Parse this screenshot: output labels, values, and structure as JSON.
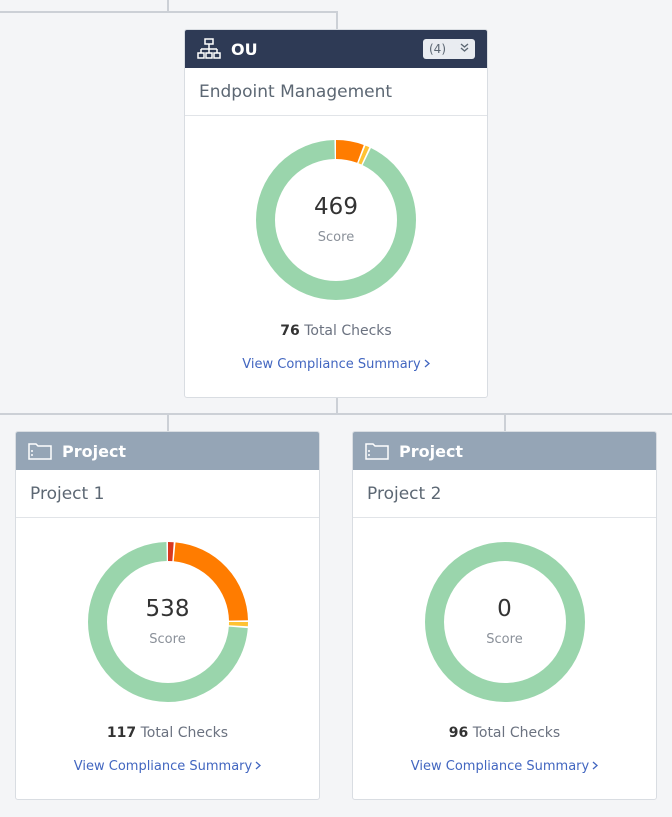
{
  "colors": {
    "ou_header": "#2e3a55",
    "project_header": "#95a5b6",
    "passing": "#9ad5ac",
    "warning": "#ff7c00",
    "low": "#ffc233",
    "critical": "#d9381e",
    "link": "#4266c0"
  },
  "ou_card": {
    "header_icon": "org-hierarchy-icon",
    "header_label": "OU",
    "count_label": "(4)",
    "count_icon": "double-chevron-down-icon",
    "name": "Endpoint Management",
    "score": "469",
    "score_label": "Score",
    "checks_count": "76",
    "checks_label": "Total Checks",
    "link_label": "View Compliance Summary",
    "link_icon": "chevron-right-icon",
    "segments": [
      {
        "status": "warning",
        "fraction": 0.06
      },
      {
        "status": "low",
        "fraction": 0.012
      },
      {
        "status": "passing",
        "fraction": 0.928
      }
    ]
  },
  "projects": [
    {
      "header_icon": "folder-icon",
      "header_label": "Project",
      "name": "Project 1",
      "score": "538",
      "score_label": "Score",
      "checks_count": "117",
      "checks_label": "Total Checks",
      "link_label": "View Compliance Summary",
      "link_icon": "chevron-right-icon",
      "segments": [
        {
          "status": "critical",
          "fraction": 0.015
        },
        {
          "status": "warning",
          "fraction": 0.235
        },
        {
          "status": "low",
          "fraction": 0.012
        },
        {
          "status": "passing",
          "fraction": 0.738
        }
      ]
    },
    {
      "header_icon": "folder-icon",
      "header_label": "Project",
      "name": "Project 2",
      "score": "0",
      "score_label": "Score",
      "checks_count": "96",
      "checks_label": "Total Checks",
      "link_label": "View Compliance Summary",
      "link_icon": "chevron-right-icon",
      "segments": [
        {
          "status": "passing",
          "fraction": 1.0
        }
      ]
    }
  ]
}
